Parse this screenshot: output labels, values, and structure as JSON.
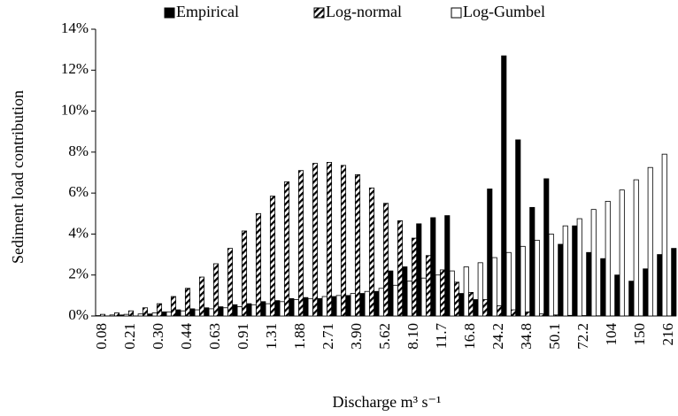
{
  "chart_data": {
    "type": "bar",
    "y_label": "Sediment load contribution",
    "x_label": "Discharge m³ s⁻¹",
    "categories": [
      "0.08",
      null,
      "0.21",
      null,
      "0.30",
      null,
      "0.44",
      null,
      "0.63",
      null,
      "0.91",
      null,
      "1.31",
      null,
      "1.88",
      null,
      "2.71",
      null,
      "3.90",
      null,
      "5.62",
      null,
      "8.10",
      null,
      "11.7",
      null,
      "16.8",
      null,
      "24.2",
      null,
      "34.8",
      null,
      "50.1",
      null,
      "72.2",
      null,
      "104",
      null,
      "150",
      null,
      "216"
    ],
    "series": [
      {
        "name": "Empirical",
        "color": "#000000",
        "values": [
          0,
          0.05,
          0,
          0.1,
          0.2,
          0.3,
          0.35,
          0.4,
          0.45,
          0.55,
          0.6,
          0.7,
          0.75,
          0.85,
          0.9,
          0.85,
          0.95,
          1.0,
          1.1,
          1.2,
          2.2,
          2.4,
          4.5,
          4.8,
          4.9,
          1.1,
          0.8,
          6.2,
          12.7,
          8.6,
          5.3,
          6.7,
          3.5,
          4.4,
          3.1,
          2.8,
          2.0,
          1.7,
          2.3,
          3.0,
          3.3
        ]
      },
      {
        "name": "Log-normal",
        "color": "#000000",
        "pattern": "hatched",
        "values": [
          0.08,
          0.15,
          0.25,
          0.4,
          0.6,
          0.95,
          1.35,
          1.9,
          2.55,
          3.3,
          4.15,
          5.0,
          5.85,
          6.55,
          7.1,
          7.45,
          7.5,
          7.35,
          6.9,
          6.25,
          5.5,
          4.65,
          3.8,
          2.95,
          2.25,
          1.65,
          1.15,
          0.8,
          0.5,
          0.3,
          0.2,
          0.1,
          0.05,
          0.03,
          0.02,
          0.01,
          0,
          0,
          0,
          0,
          0
        ]
      },
      {
        "name": "Log-Gumbel",
        "color": "#ffffff",
        "values": [
          0.02,
          0.05,
          0.08,
          0.1,
          0.15,
          0.2,
          0.25,
          0.3,
          0.35,
          0.4,
          0.45,
          0.55,
          0.6,
          0.7,
          0.8,
          0.85,
          0.95,
          1.0,
          1.1,
          1.2,
          1.35,
          1.5,
          1.7,
          1.85,
          2.0,
          2.2,
          2.4,
          2.6,
          2.85,
          3.1,
          3.4,
          3.7,
          4.0,
          4.4,
          4.75,
          5.2,
          5.6,
          6.15,
          6.65,
          7.25,
          7.9
        ]
      }
    ],
    "ylim": [
      0,
      14
    ],
    "yticks": [
      {
        "value": 0,
        "label": "0%"
      },
      {
        "value": 2,
        "label": "2%"
      },
      {
        "value": 4,
        "label": "4%"
      },
      {
        "value": 6,
        "label": "6%"
      },
      {
        "value": 8,
        "label": "8%"
      },
      {
        "value": 10,
        "label": "10%"
      },
      {
        "value": 12,
        "label": "12%"
      },
      {
        "value": 14,
        "label": "14%"
      }
    ],
    "grid": false,
    "legend": "top"
  }
}
